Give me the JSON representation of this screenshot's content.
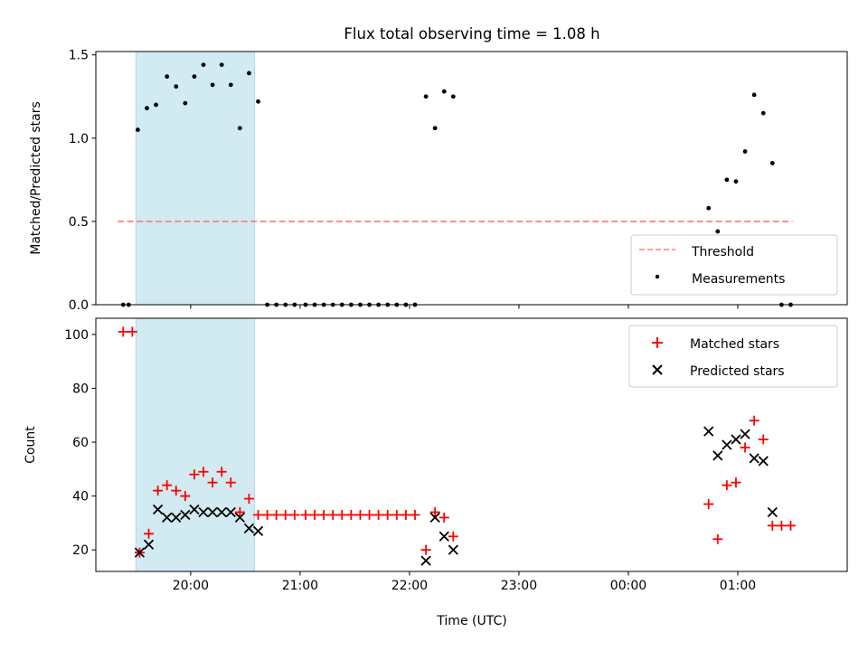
{
  "chart_data": [
    {
      "type": "scatter",
      "title": "Flux total observing time = 1.08 h",
      "xlabel": "",
      "ylabel": "Matched/Predicted stars",
      "ylim": [
        0,
        1.52
      ],
      "yticks": [
        0.0,
        0.5,
        1.0,
        1.5
      ],
      "ytick_labels": [
        "0.0",
        "0.5",
        "1.0",
        "1.5"
      ],
      "shaded_interval": [
        "19:30",
        "20:35"
      ],
      "shade_color": "#add8e6",
      "threshold": {
        "name": "Threshold",
        "value": 0.5,
        "x_start": "19:20",
        "x_end": "01:30",
        "color": "#ff7f7f"
      },
      "legend": {
        "position": "lower-right",
        "entries": [
          "Threshold",
          "Measurements"
        ]
      },
      "series": [
        {
          "name": "Measurements",
          "color": "#000000",
          "points": [
            [
              "19:23",
              0.0
            ],
            [
              "19:26",
              0.0
            ],
            [
              "19:31",
              1.05
            ],
            [
              "19:36",
              1.18
            ],
            [
              "19:41",
              1.2
            ],
            [
              "19:47",
              1.37
            ],
            [
              "19:52",
              1.31
            ],
            [
              "19:57",
              1.21
            ],
            [
              "20:02",
              1.37
            ],
            [
              "20:07",
              1.44
            ],
            [
              "20:12",
              1.32
            ],
            [
              "20:17",
              1.44
            ],
            [
              "20:22",
              1.32
            ],
            [
              "20:27",
              1.06
            ],
            [
              "20:32",
              1.39
            ],
            [
              "20:37",
              1.22
            ],
            [
              "20:42",
              0.0
            ],
            [
              "20:47",
              0.0
            ],
            [
              "20:52",
              0.0
            ],
            [
              "20:57",
              0.0
            ],
            [
              "21:03",
              0.0
            ],
            [
              "21:08",
              0.0
            ],
            [
              "21:13",
              0.0
            ],
            [
              "21:18",
              0.0
            ],
            [
              "21:23",
              0.0
            ],
            [
              "21:28",
              0.0
            ],
            [
              "21:33",
              0.0
            ],
            [
              "21:38",
              0.0
            ],
            [
              "21:43",
              0.0
            ],
            [
              "21:48",
              0.0
            ],
            [
              "21:53",
              0.0
            ],
            [
              "21:58",
              0.0
            ],
            [
              "22:03",
              0.0
            ],
            [
              "22:09",
              1.25
            ],
            [
              "22:14",
              1.06
            ],
            [
              "22:19",
              1.28
            ],
            [
              "22:24",
              1.25
            ],
            [
              "00:44",
              0.58
            ],
            [
              "00:49",
              0.44
            ],
            [
              "00:54",
              0.75
            ],
            [
              "00:59",
              0.74
            ],
            [
              "01:04",
              0.92
            ],
            [
              "01:09",
              1.26
            ],
            [
              "01:14",
              1.15
            ],
            [
              "01:19",
              0.85
            ],
            [
              "01:24",
              0.0
            ],
            [
              "01:29",
              0.0
            ]
          ]
        }
      ]
    },
    {
      "type": "scatter",
      "title": "",
      "xlabel": "Time (UTC)",
      "ylabel": "Count",
      "ylim": [
        12,
        106
      ],
      "yticks": [
        20,
        40,
        60,
        80,
        100
      ],
      "ytick_labels": [
        "20",
        "40",
        "60",
        "80",
        "100"
      ],
      "xlim": [
        "19:08",
        "02:00"
      ],
      "xticks": [
        "20:00",
        "21:00",
        "22:00",
        "23:00",
        "00:00",
        "01:00"
      ],
      "xtick_labels": [
        "20:00",
        "21:00",
        "22:00",
        "23:00",
        "00:00",
        "01:00"
      ],
      "shaded_interval": [
        "19:30",
        "20:35"
      ],
      "shade_color": "#add8e6",
      "legend": {
        "position": "top-right",
        "entries": [
          "Matched stars",
          "Predicted stars"
        ]
      },
      "series": [
        {
          "name": "Matched stars",
          "marker": "plus",
          "color": "#ff0000",
          "points": [
            [
              "19:23",
              101
            ],
            [
              "19:28",
              101
            ],
            [
              "19:32",
              19
            ],
            [
              "19:37",
              26
            ],
            [
              "19:42",
              42
            ],
            [
              "19:47",
              44
            ],
            [
              "19:52",
              42
            ],
            [
              "19:57",
              40
            ],
            [
              "20:02",
              48
            ],
            [
              "20:07",
              49
            ],
            [
              "20:12",
              45
            ],
            [
              "20:17",
              49
            ],
            [
              "20:22",
              45
            ],
            [
              "20:27",
              34
            ],
            [
              "20:32",
              39
            ],
            [
              "20:37",
              33
            ],
            [
              "20:42",
              33
            ],
            [
              "20:47",
              33
            ],
            [
              "20:52",
              33
            ],
            [
              "20:57",
              33
            ],
            [
              "21:03",
              33
            ],
            [
              "21:08",
              33
            ],
            [
              "21:13",
              33
            ],
            [
              "21:18",
              33
            ],
            [
              "21:23",
              33
            ],
            [
              "21:28",
              33
            ],
            [
              "21:33",
              33
            ],
            [
              "21:38",
              33
            ],
            [
              "21:43",
              33
            ],
            [
              "21:48",
              33
            ],
            [
              "21:53",
              33
            ],
            [
              "21:58",
              33
            ],
            [
              "22:03",
              33
            ],
            [
              "22:09",
              20
            ],
            [
              "22:14",
              34
            ],
            [
              "22:19",
              32
            ],
            [
              "22:24",
              25
            ],
            [
              "00:44",
              37
            ],
            [
              "00:49",
              24
            ],
            [
              "00:54",
              44
            ],
            [
              "00:59",
              45
            ],
            [
              "01:04",
              58
            ],
            [
              "01:09",
              68
            ],
            [
              "01:14",
              61
            ],
            [
              "01:19",
              29
            ],
            [
              "01:24",
              29
            ],
            [
              "01:29",
              29
            ]
          ]
        },
        {
          "name": "Predicted stars",
          "marker": "x",
          "color": "#000000",
          "points": [
            [
              "19:32",
              19
            ],
            [
              "19:37",
              22
            ],
            [
              "19:42",
              35
            ],
            [
              "19:47",
              32
            ],
            [
              "19:52",
              32
            ],
            [
              "19:57",
              33
            ],
            [
              "20:02",
              35
            ],
            [
              "20:07",
              34
            ],
            [
              "20:12",
              34
            ],
            [
              "20:17",
              34
            ],
            [
              "20:22",
              34
            ],
            [
              "20:27",
              32
            ],
            [
              "20:32",
              28
            ],
            [
              "20:37",
              27
            ],
            [
              "22:09",
              16
            ],
            [
              "22:14",
              32
            ],
            [
              "22:19",
              25
            ],
            [
              "22:24",
              20
            ],
            [
              "00:44",
              64
            ],
            [
              "00:49",
              55
            ],
            [
              "00:54",
              59
            ],
            [
              "00:59",
              61
            ],
            [
              "01:04",
              63
            ],
            [
              "01:09",
              54
            ],
            [
              "01:14",
              53
            ],
            [
              "01:19",
              34
            ]
          ]
        }
      ]
    }
  ]
}
